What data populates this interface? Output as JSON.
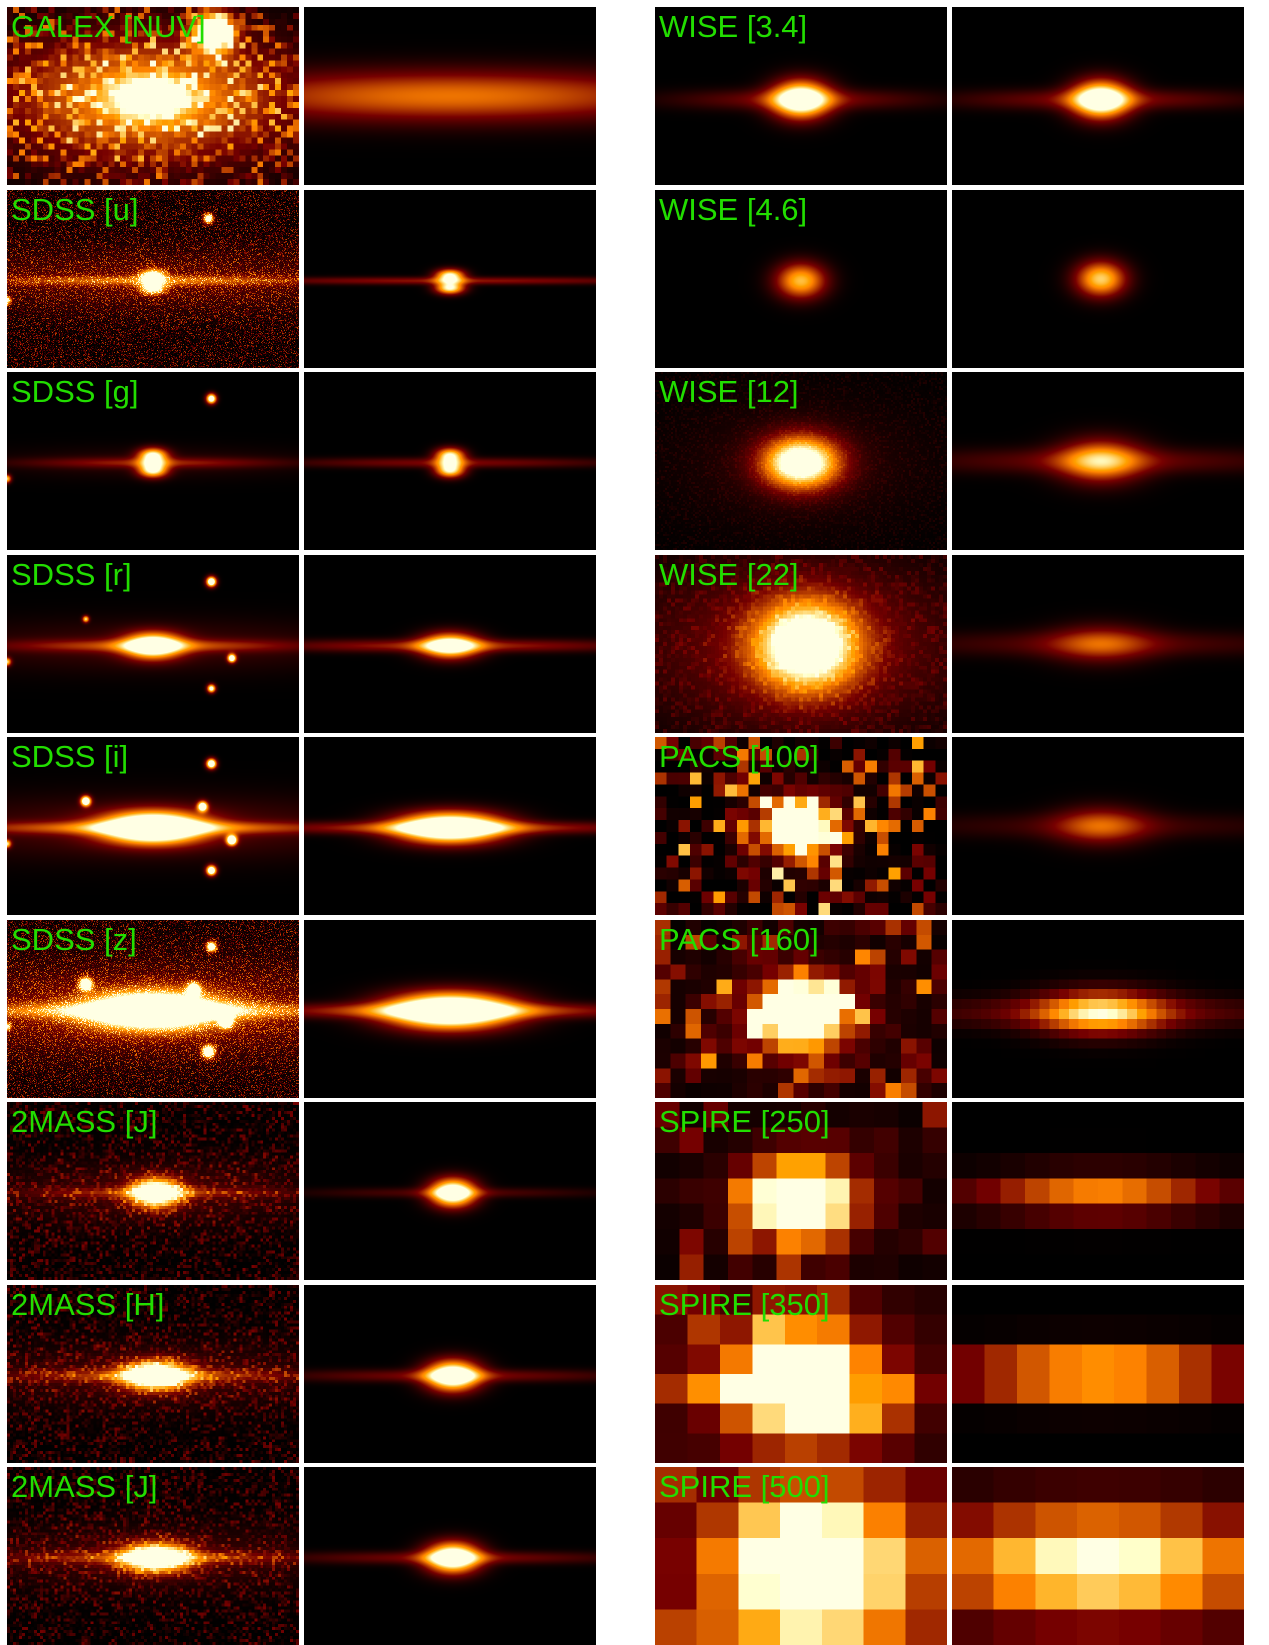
{
  "colors": {
    "label": "#22dd00",
    "background": "#000000",
    "separator": "#ffffff"
  },
  "left_column": {
    "rows": [
      {
        "label": "GALEX [NUV]"
      },
      {
        "label": "SDSS [u]"
      },
      {
        "label": "SDSS [g]"
      },
      {
        "label": "SDSS [r]"
      },
      {
        "label": "SDSS [i]"
      },
      {
        "label": "SDSS [z]"
      },
      {
        "label": "2MASS [J]"
      },
      {
        "label": "2MASS [H]"
      },
      {
        "label": "2MASS [J]"
      }
    ]
  },
  "right_column": {
    "rows": [
      {
        "label": "WISE [3.4]"
      },
      {
        "label": "WISE [4.6]"
      },
      {
        "label": "WISE [12]"
      },
      {
        "label": "WISE [22]"
      },
      {
        "label": "PACS [100]"
      },
      {
        "label": "PACS [160]"
      },
      {
        "label": "SPIRE [250]"
      },
      {
        "label": "SPIRE [350]"
      },
      {
        "label": "SPIRE [500]"
      }
    ]
  }
}
